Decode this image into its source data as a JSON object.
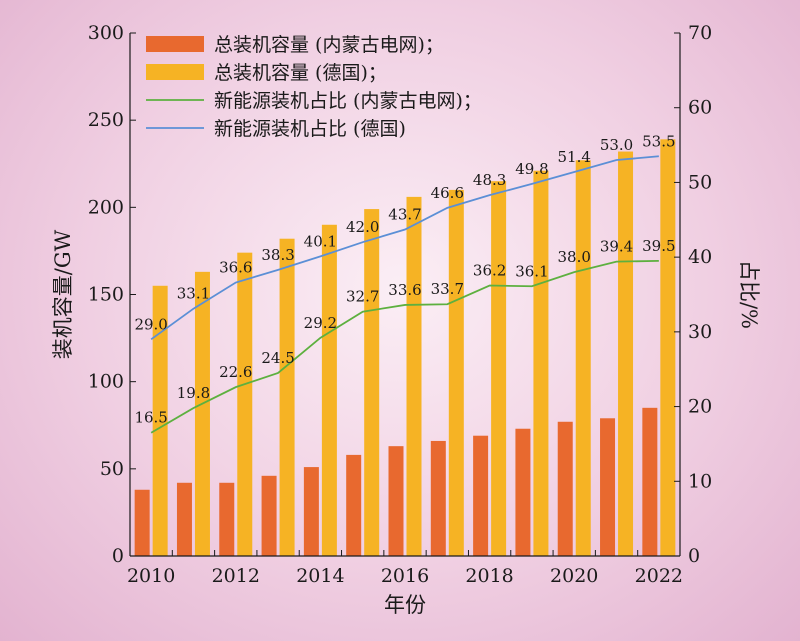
{
  "chart_data": {
    "type": "bar",
    "x": [
      "2010",
      "2011",
      "2012",
      "2013",
      "2014",
      "2015",
      "2016",
      "2017",
      "2018",
      "2019",
      "2020",
      "2021",
      "2022"
    ],
    "x_tick_labels": [
      "2010",
      "2012",
      "2014",
      "2016",
      "2018",
      "2020",
      "2022"
    ],
    "xlabel": "年份",
    "ylabel_left": "装机容量/GW",
    "ylabel_right": "占比/%",
    "ylim_left": [
      0,
      300
    ],
    "ylim_right": [
      0,
      70
    ],
    "yticks_left": [
      "0",
      "50",
      "100",
      "150",
      "200",
      "250",
      "300"
    ],
    "yticks_right": [
      "0",
      "10",
      "20",
      "30",
      "40",
      "50",
      "60",
      "70"
    ],
    "grid": false,
    "legend_position": "top-left",
    "series": [
      {
        "name": "总装机容量 (内蒙古电网)；",
        "kind": "bar",
        "axis": "left",
        "color": "#e8692f",
        "values": [
          38,
          42,
          42,
          46,
          51,
          58,
          63,
          66,
          69,
          73,
          77,
          79,
          85
        ]
      },
      {
        "name": "总装机容量 (德国)；",
        "kind": "bar",
        "axis": "left",
        "color": "#f6b324",
        "values": [
          155,
          163,
          174,
          182,
          190,
          199,
          206,
          210,
          215,
          221,
          227,
          232,
          239
        ]
      },
      {
        "name": "新能源装机占比 (内蒙古电网)；",
        "kind": "line",
        "axis": "right",
        "color": "#5db03f",
        "values": [
          16.5,
          19.8,
          22.6,
          24.5,
          29.2,
          32.7,
          33.6,
          33.7,
          36.2,
          36.1,
          38.0,
          39.4,
          39.5
        ],
        "labels": [
          "16.5",
          "19.8",
          "22.6",
          "24.5",
          "29.2",
          "32.7",
          "33.6",
          "33.7",
          "36.2",
          "36.1",
          "38.0",
          "39.4",
          "39.5"
        ]
      },
      {
        "name": "新能源装机占比 (德国)",
        "kind": "line",
        "axis": "right",
        "color": "#5b8fd6",
        "values": [
          29.0,
          33.1,
          36.6,
          38.3,
          40.1,
          42.0,
          43.7,
          46.6,
          48.3,
          49.8,
          51.4,
          53.0,
          53.5
        ],
        "labels": [
          "29.0",
          "33.1",
          "36.6",
          "38.3",
          "40.1",
          "42.0",
          "43.7",
          "46.6",
          "48.3",
          "49.8",
          "51.4",
          "53.0",
          "53.5"
        ]
      }
    ]
  }
}
